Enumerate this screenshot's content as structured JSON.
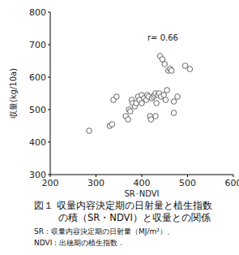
{
  "chart_data": {
    "type": "scatter",
    "title": [
      "図１ 収量内容決定期の日射量と植生指数",
      "の積（SR・NDVI）と収量との関係"
    ],
    "note": [
      "SR：収量内容決定期の日射量（MJ/m²）、",
      "NDVI：出穂期の植生指数．"
    ],
    "x_label": "SR･NDVI",
    "y_label": "収量(kg/10a)",
    "annotations": [
      "r= 0.66"
    ],
    "x": [
      285,
      330,
      335,
      338,
      345,
      365,
      370,
      372,
      375,
      378,
      380,
      385,
      388,
      392,
      395,
      400,
      400,
      405,
      410,
      412,
      415,
      418,
      420,
      422,
      425,
      428,
      430,
      430,
      432,
      435,
      438,
      440,
      442,
      445,
      448,
      450,
      452,
      455,
      458,
      462,
      465,
      470,
      470,
      478,
      495,
      505
    ],
    "values": [
      435,
      450,
      455,
      530,
      540,
      480,
      470,
      500,
      495,
      530,
      520,
      510,
      520,
      540,
      530,
      545,
      520,
      535,
      530,
      545,
      540,
      480,
      470,
      535,
      540,
      545,
      480,
      550,
      520,
      545,
      550,
      665,
      540,
      655,
      545,
      640,
      530,
      560,
      620,
      625,
      620,
      490,
      525,
      540,
      635,
      625
    ],
    "color": "#555555",
    "marker": "open-circle",
    "xlim": [
      200,
      600
    ],
    "xticks": [
      200,
      300,
      400,
      500,
      600
    ],
    "ylim": [
      300,
      800
    ],
    "yticks": [
      300,
      400,
      500,
      600,
      700,
      800
    ],
    "grid": false
  }
}
